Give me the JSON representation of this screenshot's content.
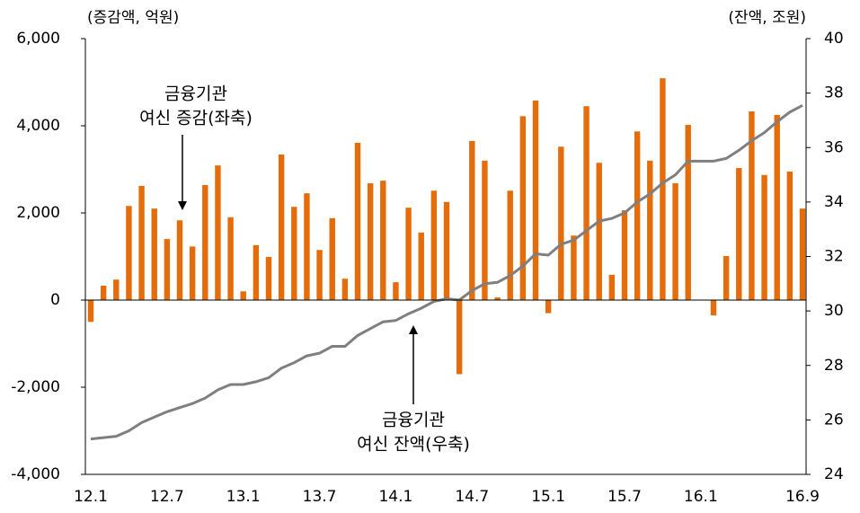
{
  "chart_data": {
    "type": "bar_line",
    "y_label": "(증감액, 억원)",
    "y2_label": "(잔액, 조원)",
    "annotations": [
      {
        "lines": [
          "금융기관",
          "여신 증감(좌축)"
        ]
      },
      {
        "lines": [
          "금융기관",
          "여신 잔액(우축)"
        ]
      }
    ],
    "categories": [
      "12.1",
      null,
      null,
      null,
      null,
      null,
      "12.7",
      null,
      null,
      null,
      null,
      null,
      "13.1",
      null,
      null,
      null,
      null,
      null,
      "13.7",
      null,
      null,
      null,
      null,
      null,
      "14.1",
      null,
      null,
      null,
      null,
      null,
      "14.7",
      null,
      null,
      null,
      null,
      null,
      "15.1",
      null,
      null,
      null,
      null,
      null,
      "15.7",
      null,
      null,
      null,
      null,
      null,
      "16.1",
      null,
      null,
      null,
      null,
      null,
      null,
      null,
      "16.9"
    ],
    "ylim": [
      -4000,
      6000
    ],
    "yticks": [
      {
        "value": -4000,
        "label": "-4,000"
      },
      {
        "value": -2000,
        "label": "-2,000"
      },
      0,
      {
        "value": 2000,
        "label": "2,000"
      },
      {
        "value": 4000,
        "label": "4,000"
      },
      {
        "value": 6000,
        "label": "6,000"
      }
    ],
    "y2lim": [
      24,
      40
    ],
    "y2ticks": [
      24,
      26,
      28,
      30,
      32,
      34,
      36,
      38,
      40
    ],
    "series": [
      {
        "type": "bar",
        "color": "#e46c0a",
        "values": [
          -500,
          330,
          470,
          2160,
          2620,
          2100,
          1400,
          1830,
          1230,
          2640,
          3090,
          1900,
          200,
          1260,
          990,
          3340,
          2140,
          2450,
          1150,
          1880,
          490,
          3610,
          2680,
          2740,
          410,
          2120,
          1550,
          2510,
          2250,
          -1700,
          3650,
          3200,
          60,
          2510,
          4220,
          4580,
          -300,
          3520,
          1480,
          4450,
          3150,
          580,
          2060,
          3870,
          3200,
          5090,
          2680,
          4020,
          0,
          -350,
          1010,
          3030,
          4330,
          2870,
          4250,
          2950,
          2100
        ]
      },
      {
        "type": "line",
        "axis": "y2",
        "color": "#7f7f7f",
        "values": [
          25.3,
          25.35,
          25.4,
          25.6,
          25.9,
          26.1,
          26.3,
          26.45,
          26.6,
          26.8,
          27.1,
          27.3,
          27.3,
          27.4,
          27.55,
          27.9,
          28.1,
          28.35,
          28.45,
          28.7,
          28.7,
          29.1,
          29.35,
          29.6,
          29.65,
          29.9,
          30.1,
          30.35,
          30.45,
          30.4,
          30.75,
          31.0,
          31.05,
          31.3,
          31.65,
          32.1,
          32.05,
          32.45,
          32.6,
          32.95,
          33.3,
          33.4,
          33.6,
          34.0,
          34.3,
          34.7,
          35.0,
          35.5,
          35.5,
          35.5,
          35.6,
          35.9,
          36.25,
          36.55,
          36.95,
          37.3,
          37.55
        ]
      }
    ]
  }
}
